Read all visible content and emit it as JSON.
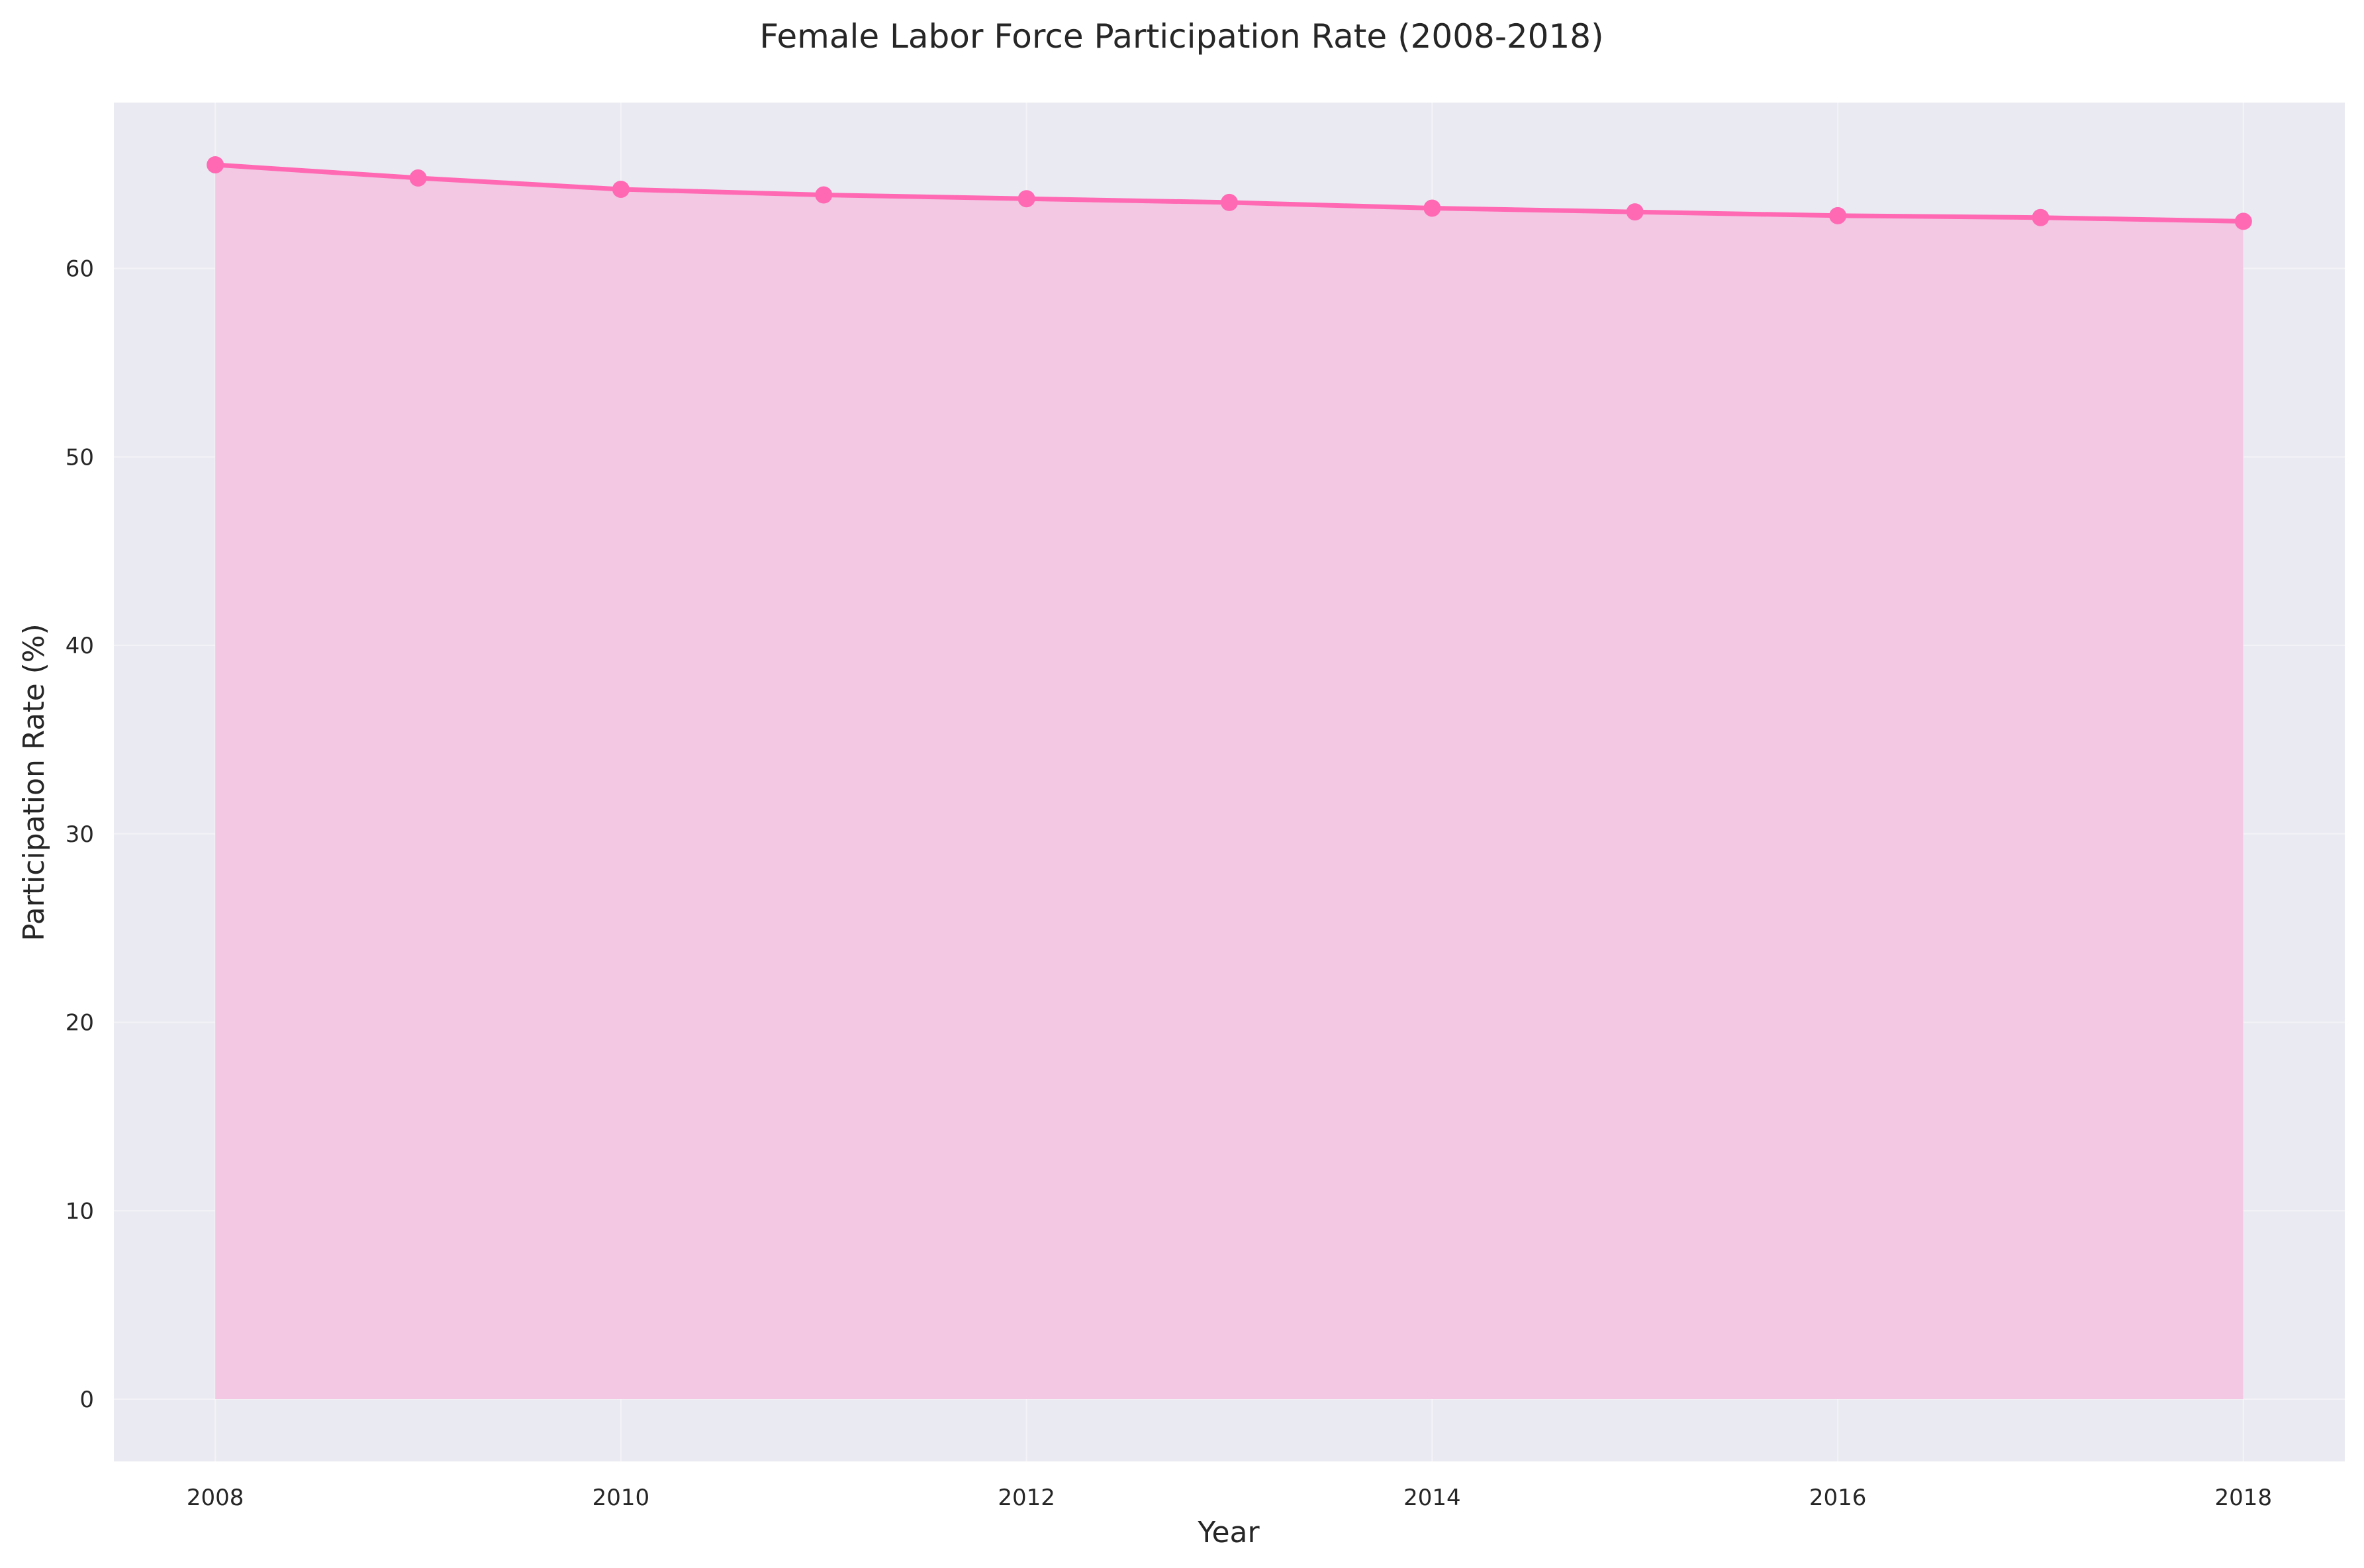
{
  "chart_data": {
    "type": "area",
    "title": "Female Labor Force Participation Rate (2008-2018)",
    "xlabel": "Year",
    "ylabel": "Participation Rate (%)",
    "x": [
      2008,
      2009,
      2010,
      2011,
      2012,
      2013,
      2014,
      2015,
      2016,
      2017,
      2018
    ],
    "series": [
      {
        "values": [
          65.5,
          64.8,
          64.2,
          63.9,
          63.7,
          63.5,
          63.2,
          63.0,
          62.8,
          62.7,
          62.5
        ]
      }
    ],
    "xlim": [
      2007.5,
      2018.5
    ],
    "ylim": [
      -3.3,
      68.8
    ],
    "xticks": [
      2008,
      2010,
      2012,
      2014,
      2016,
      2018
    ],
    "yticks": [
      0,
      10,
      20,
      30,
      40,
      50,
      60
    ],
    "grid": true,
    "colors": {
      "line": "#ff69b4",
      "fill": "#f2c8e3",
      "plot_background": "#eaeaf2"
    }
  }
}
